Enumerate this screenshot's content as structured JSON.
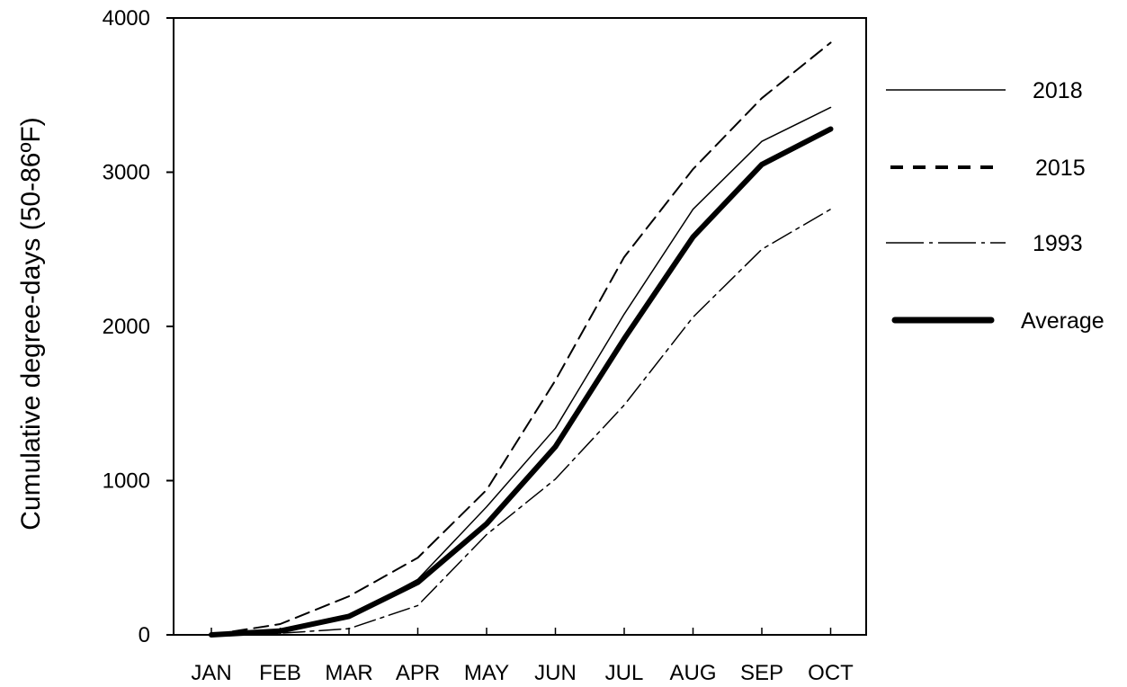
{
  "chart_data": {
    "type": "line",
    "title": "",
    "xlabel": "",
    "ylabel": "Cumulative degree-days (50-86ºF)",
    "categories": [
      "JAN",
      "FEB",
      "MAR",
      "APR",
      "MAY",
      "JUN",
      "JUL",
      "AUG",
      "SEP",
      "OCT"
    ],
    "ylim": [
      0,
      4000
    ],
    "yticks": [
      0,
      1000,
      2000,
      3000,
      4000
    ],
    "grid": false,
    "legend_position": "right",
    "series": [
      {
        "name": "2018",
        "style": "solid-thin",
        "values": [
          0,
          20,
          120,
          360,
          830,
          1340,
          2080,
          2760,
          3200,
          3420
        ]
      },
      {
        "name": "2015",
        "style": "dashed",
        "values": [
          0,
          70,
          250,
          500,
          940,
          1650,
          2450,
          3020,
          3480,
          3840
        ]
      },
      {
        "name": "1993",
        "style": "dashdot",
        "values": [
          0,
          10,
          40,
          190,
          650,
          1010,
          1490,
          2060,
          2500,
          2760
        ]
      },
      {
        "name": "Average",
        "style": "solid-thick",
        "values": [
          0,
          25,
          120,
          340,
          720,
          1220,
          1920,
          2580,
          3050,
          3280
        ]
      }
    ]
  }
}
